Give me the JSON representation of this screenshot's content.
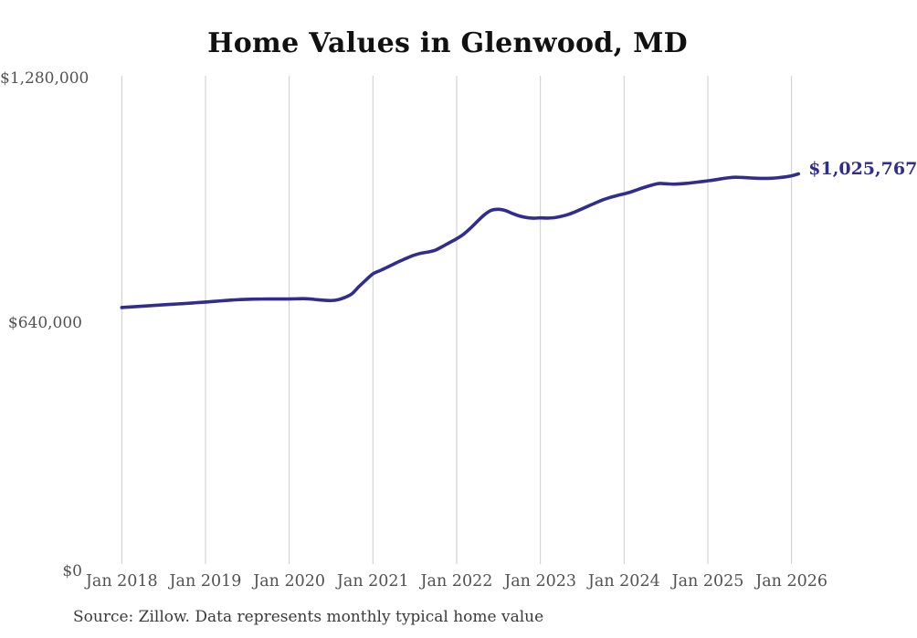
{
  "page": {
    "title": "Home Values in Glenwood, MD",
    "source_note": "Source: Zillow. Data represents monthly typical home value"
  },
  "colors": {
    "line": "#312d8e",
    "grid": "#cccccc",
    "tick_text": "#525252",
    "title_text": "#111111",
    "source_text": "#3a3a3a",
    "end_label_text": "#312d8e"
  },
  "chart_data": {
    "type": "line",
    "title": "Home Values in Glenwood, MD",
    "xlabel": "",
    "ylabel": "",
    "x_tick_labels": [
      "Jan 2018",
      "Jan 2019",
      "Jan 2020",
      "Jan 2021",
      "Jan 2022",
      "Jan 2023",
      "Jan 2024",
      "Jan 2025",
      "Jan 2026"
    ],
    "y_ticks": [
      {
        "label": "$0",
        "value": 0
      },
      {
        "label": "$640,000",
        "value": 640000
      },
      {
        "label": "$1,280,000",
        "value": 1280000
      }
    ],
    "ylim": [
      0,
      1280000
    ],
    "grid": "vertical-only",
    "legend_position": "none",
    "end_point_label": "$1,025,767",
    "end_point_value": 1025767,
    "series": [
      {
        "name": "Monthly typical home value",
        "start": "Jan 2018",
        "points_per_year": 12,
        "values": [
          676000,
          677200,
          678400,
          679600,
          680800,
          682000,
          683200,
          684300,
          685400,
          686500,
          687700,
          689000,
          690300,
          691700,
          693100,
          694500,
          695800,
          696800,
          697500,
          698000,
          698200,
          698300,
          698300,
          698300,
          698400,
          698800,
          699200,
          698400,
          696500,
          695000,
          694300,
          696500,
          702500,
          712000,
          731000,
          748000,
          764200,
          772500,
          781000,
          790000,
          798500,
          806500,
          813500,
          818500,
          821500,
          826500,
          836000,
          846000,
          856000,
          868000,
          884000,
          902000,
          919000,
          930500,
          933000,
          929500,
          922000,
          915500,
          911500,
          909800,
          910500,
          910000,
          911000,
          914500,
          919500,
          926500,
          934500,
          942500,
          950500,
          958000,
          964000,
          969000,
          973500,
          978500,
          985000,
          991000,
          996500,
          1000500,
          999800,
          998800,
          999500,
          1001000,
          1003000,
          1005200,
          1007500,
          1010000,
          1013000,
          1015500,
          1016800,
          1016200,
          1015200,
          1014200,
          1013800,
          1014200,
          1015500,
          1017500,
          1020500,
          1025767
        ]
      }
    ]
  }
}
